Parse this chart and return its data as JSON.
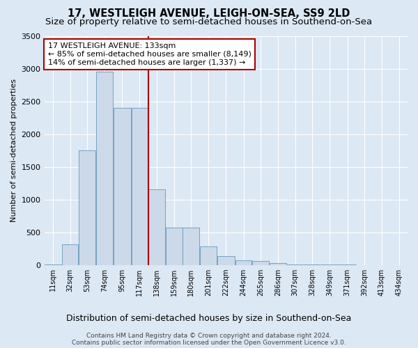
{
  "title": "17, WESTLEIGH AVENUE, LEIGH-ON-SEA, SS9 2LD",
  "subtitle": "Size of property relative to semi-detached houses in Southend-on-Sea",
  "xlabel": "Distribution of semi-detached houses by size in Southend-on-Sea",
  "ylabel": "Number of semi-detached properties",
  "footer1": "Contains HM Land Registry data © Crown copyright and database right 2024.",
  "footer2": "Contains public sector information licensed under the Open Government Licence v3.0.",
  "annotation_line1": "17 WESTLEIGH AVENUE: 133sqm",
  "annotation_line2": "← 85% of semi-detached houses are smaller (8,149)",
  "annotation_line3": "14% of semi-detached houses are larger (1,337) →",
  "bar_left_edges": [
    11,
    32,
    53,
    74,
    95,
    117,
    138,
    159,
    180,
    201,
    222,
    244,
    265,
    286,
    307,
    328,
    349,
    371,
    392,
    413,
    434
  ],
  "bar_widths": [
    21,
    21,
    21,
    21,
    22,
    21,
    21,
    21,
    21,
    21,
    22,
    21,
    21,
    21,
    21,
    21,
    22,
    21,
    21,
    21,
    21
  ],
  "bar_heights": [
    10,
    310,
    1750,
    2950,
    2400,
    2400,
    1150,
    570,
    570,
    285,
    130,
    75,
    55,
    25,
    5,
    5,
    2,
    2,
    1,
    0,
    0
  ],
  "tick_labels": [
    "11sqm",
    "32sqm",
    "53sqm",
    "74sqm",
    "95sqm",
    "117sqm",
    "138sqm",
    "159sqm",
    "180sqm",
    "201sqm",
    "222sqm",
    "244sqm",
    "265sqm",
    "286sqm",
    "307sqm",
    "328sqm",
    "349sqm",
    "371sqm",
    "392sqm",
    "413sqm",
    "434sqm"
  ],
  "bar_color": "#ccd9e8",
  "bar_edge_color": "#6699bb",
  "vline_x": 138,
  "vline_color": "#aa0000",
  "annotation_box_color": "#aa0000",
  "ylim": [
    0,
    3500
  ],
  "yticks": [
    0,
    500,
    1000,
    1500,
    2000,
    2500,
    3000,
    3500
  ],
  "bg_color": "#dce8f4",
  "plot_bg_color": "#dce8f4",
  "grid_color": "#ffffff",
  "title_fontsize": 10.5,
  "subtitle_fontsize": 9.5,
  "ylabel_fontsize": 8,
  "xlabel_fontsize": 9,
  "footer_fontsize": 6.5
}
